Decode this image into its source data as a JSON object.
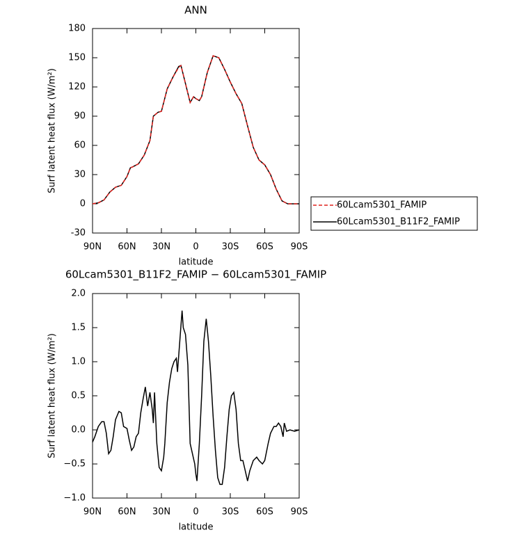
{
  "chart_data": [
    {
      "type": "line",
      "title": "ANN",
      "x_label": "latitude",
      "y_label": "Surf latent heat flux (W/m²)",
      "x": [
        90,
        85,
        80,
        75,
        70,
        65,
        60,
        57,
        55,
        50,
        45,
        40,
        37,
        33,
        30,
        25,
        20,
        15,
        13,
        10,
        5,
        2,
        0,
        -3,
        -5,
        -10,
        -15,
        -20,
        -25,
        -30,
        -35,
        -40,
        -45,
        -50,
        -55,
        -60,
        -65,
        -70,
        -75,
        -80,
        -85,
        -90
      ],
      "series": [
        {
          "name": "60Lcam5301_FAMIP",
          "color": "#e0201c",
          "dash": true,
          "values": [
            0,
            1,
            4,
            12,
            17,
            19,
            28,
            37,
            38,
            41,
            50,
            65,
            90,
            94,
            95,
            118,
            130,
            140,
            142,
            128,
            104,
            110,
            108,
            106,
            110,
            135,
            152,
            150,
            138,
            125,
            113,
            103,
            80,
            58,
            45,
            40,
            30,
            15,
            3,
            0,
            0,
            0
          ]
        },
        {
          "name": "60Lcam5301_B11F2_FAMIP",
          "color": "#000000",
          "dash": false,
          "values": [
            0,
            1,
            4,
            12,
            17,
            19,
            28,
            37,
            38,
            41,
            50,
            65,
            90,
            94,
            95,
            118,
            130,
            141,
            142,
            128,
            104,
            110,
            108,
            106,
            110,
            135,
            152,
            150,
            138,
            125,
            113,
            103,
            80,
            58,
            45,
            40,
            30,
            15,
            3,
            0,
            0,
            0
          ]
        }
      ],
      "xlim": [
        90,
        -90
      ],
      "ylim": [
        -30,
        180
      ],
      "xticks": [
        {
          "value": 90,
          "label": "90N"
        },
        {
          "value": 60,
          "label": "60N"
        },
        {
          "value": 30,
          "label": "30N"
        },
        0,
        {
          "value": -30,
          "label": "30S"
        },
        {
          "value": -60,
          "label": "60S"
        },
        {
          "value": -90,
          "label": "90S"
        }
      ],
      "yticks": [
        -30,
        0,
        30,
        60,
        90,
        120,
        150,
        180
      ],
      "legend": "right"
    },
    {
      "type": "line",
      "title": "60Lcam5301_B11F2_FAMIP − 60Lcam5301_FAMIP",
      "x_label": "latitude",
      "y_label": "Surf latent heat flux (W/m²)",
      "x": [
        90,
        88,
        85,
        82,
        80,
        78,
        76,
        74,
        72,
        70,
        67,
        65,
        63,
        60,
        58,
        56,
        54,
        52,
        50,
        48,
        46,
        44,
        42,
        40,
        38,
        37,
        36,
        34,
        32,
        30,
        28,
        27,
        25,
        23,
        21,
        19,
        17,
        16,
        14,
        12,
        11,
        9,
        7,
        5,
        3,
        1,
        0,
        -1,
        -3,
        -5,
        -7,
        -9,
        -11,
        -13,
        -15,
        -17,
        -19,
        -21,
        -23,
        -25,
        -27,
        -29,
        -31,
        -33,
        -35,
        -37,
        -39,
        -41,
        -43,
        -45,
        -47,
        -50,
        -53,
        -55,
        -58,
        -60,
        -63,
        -65,
        -68,
        -70,
        -72,
        -74,
        -76,
        -77,
        -79,
        -82,
        -86,
        -90
      ],
      "values": [
        -0.18,
        -0.1,
        0.05,
        0.12,
        0.12,
        -0.05,
        -0.35,
        -0.3,
        -0.1,
        0.15,
        0.27,
        0.25,
        0.05,
        0.02,
        -0.15,
        -0.3,
        -0.25,
        -0.1,
        -0.05,
        0.25,
        0.45,
        0.63,
        0.35,
        0.55,
        0.3,
        0.1,
        0.55,
        -0.2,
        -0.55,
        -0.6,
        -0.4,
        -0.2,
        0.4,
        0.7,
        0.9,
        1.0,
        1.05,
        0.85,
        1.3,
        1.75,
        1.5,
        1.4,
        0.95,
        -0.2,
        -0.35,
        -0.5,
        -0.65,
        -0.75,
        -0.2,
        0.5,
        1.3,
        1.63,
        1.3,
        0.8,
        0.2,
        -0.3,
        -0.7,
        -0.8,
        -0.8,
        -0.55,
        -0.1,
        0.3,
        0.5,
        0.55,
        0.3,
        -0.2,
        -0.45,
        -0.45,
        -0.6,
        -0.75,
        -0.6,
        -0.45,
        -0.4,
        -0.45,
        -0.5,
        -0.45,
        -0.2,
        -0.05,
        0.05,
        0.05,
        0.1,
        0.05,
        -0.1,
        0.1,
        -0.02,
        0,
        -0.02,
        0
      ],
      "color": "#000000",
      "xlim": [
        90,
        -90
      ],
      "ylim": [
        -1.0,
        2.0
      ],
      "xticks": [
        {
          "value": 90,
          "label": "90N"
        },
        {
          "value": 60,
          "label": "60N"
        },
        {
          "value": 30,
          "label": "30N"
        },
        0,
        {
          "value": -30,
          "label": "30S"
        },
        {
          "value": -60,
          "label": "60S"
        },
        {
          "value": -90,
          "label": "90S"
        }
      ],
      "yticks": [
        {
          "value": -1.0,
          "label": "−1.0"
        },
        {
          "value": -0.5,
          "label": "−0.5"
        },
        {
          "value": 0.0,
          "label": "0.0"
        },
        {
          "value": 0.5,
          "label": "0.5"
        },
        {
          "value": 1.0,
          "label": "1.0"
        },
        {
          "value": 1.5,
          "label": "1.5"
        },
        {
          "value": 2.0,
          "label": "2.0"
        }
      ]
    }
  ]
}
